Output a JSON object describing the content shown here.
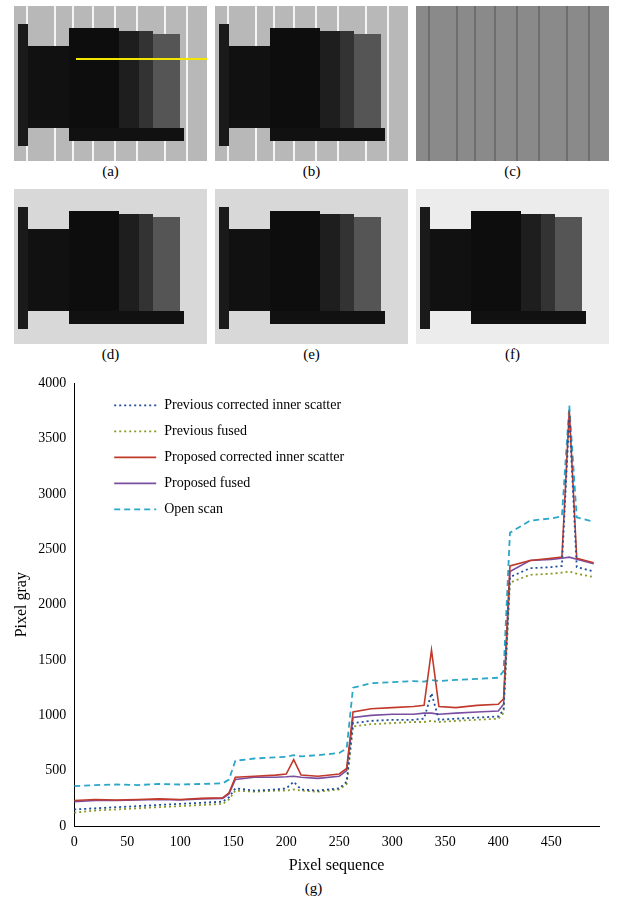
{
  "panels": [
    {
      "label": "(a)"
    },
    {
      "label": "(b)"
    },
    {
      "label": "(c)"
    },
    {
      "label": "(d)"
    },
    {
      "label": "(e)"
    },
    {
      "label": "(f)"
    }
  ],
  "chart_data": {
    "type": "line",
    "caption": "(g)",
    "xlabel": "Pixel sequence",
    "ylabel": "Pixel gray",
    "x": [
      0,
      20,
      40,
      60,
      80,
      100,
      120,
      140,
      146,
      152,
      170,
      190,
      200,
      207,
      214,
      230,
      250,
      257,
      263,
      280,
      300,
      320,
      330,
      337,
      344,
      360,
      380,
      400,
      405,
      411,
      430,
      450,
      460,
      467,
      474,
      490
    ],
    "series": [
      {
        "name": "Previous corrected inner scatter",
        "color": "#1f4e9a",
        "line_style": "dotted",
        "values": [
          150,
          160,
          170,
          180,
          190,
          200,
          210,
          220,
          260,
          340,
          320,
          330,
          340,
          400,
          330,
          320,
          340,
          400,
          930,
          950,
          960,
          960,
          970,
          1200,
          960,
          970,
          980,
          990,
          1050,
          2250,
          2330,
          2340,
          2350,
          3700,
          2340,
          2300
        ]
      },
      {
        "name": "Previous fused",
        "color": "#8a9a2a",
        "line_style": "dotted",
        "values": [
          120,
          140,
          150,
          160,
          170,
          180,
          190,
          200,
          240,
          320,
          310,
          320,
          320,
          330,
          320,
          310,
          330,
          380,
          900,
          920,
          930,
          940,
          940,
          950,
          940,
          950,
          960,
          970,
          1020,
          2200,
          2270,
          2280,
          2290,
          2300,
          2280,
          2250
        ]
      },
      {
        "name": "Proposed corrected inner scatter",
        "color": "#c0392b",
        "line_style": "solid",
        "values": [
          230,
          240,
          235,
          240,
          245,
          240,
          250,
          255,
          300,
          440,
          450,
          460,
          470,
          600,
          460,
          450,
          470,
          520,
          1030,
          1060,
          1070,
          1080,
          1090,
          1590,
          1080,
          1070,
          1090,
          1100,
          1150,
          2350,
          2400,
          2420,
          2430,
          3750,
          2420,
          2380
        ]
      },
      {
        "name": "Proposed fused",
        "color": "#7a4fa0",
        "line_style": "solid",
        "values": [
          220,
          230,
          230,
          235,
          240,
          235,
          245,
          250,
          290,
          420,
          440,
          440,
          445,
          450,
          440,
          430,
          450,
          500,
          980,
          1000,
          1010,
          1010,
          1020,
          1020,
          1010,
          1020,
          1030,
          1040,
          1100,
          2300,
          2400,
          2410,
          2420,
          2430,
          2410,
          2370
        ]
      },
      {
        "name": "Open scan",
        "color": "#2aa7c9",
        "line_style": "dashed",
        "values": [
          360,
          370,
          375,
          370,
          380,
          375,
          380,
          385,
          420,
          590,
          610,
          620,
          625,
          640,
          630,
          640,
          660,
          700,
          1250,
          1290,
          1300,
          1310,
          1305,
          1320,
          1310,
          1320,
          1330,
          1340,
          1400,
          2650,
          2760,
          2780,
          2800,
          3800,
          2790,
          2750
        ]
      }
    ],
    "xlim": [
      0,
      495
    ],
    "ylim": [
      0,
      4000
    ],
    "xticks": [
      0,
      50,
      100,
      150,
      200,
      250,
      300,
      350,
      400,
      450
    ],
    "yticks": [
      0,
      500,
      1000,
      1500,
      2000,
      2500,
      3000,
      3500,
      4000
    ],
    "grid": false,
    "legend": "upper left"
  }
}
